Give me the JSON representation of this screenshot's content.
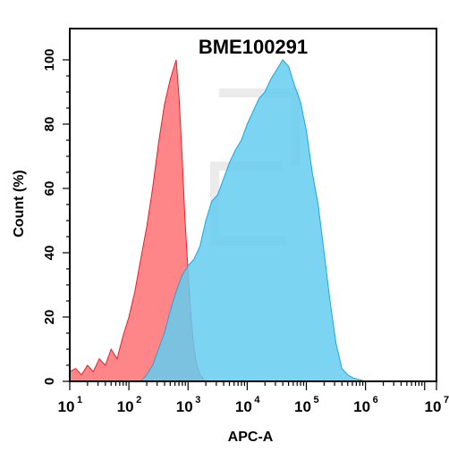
{
  "chart_data": {
    "type": "area",
    "title": "BME100291",
    "xlabel": "APC-A",
    "ylabel": "Count  (%)",
    "x_scale": "log10",
    "xlim": [
      10,
      15848932
    ],
    "ylim": [
      0,
      100
    ],
    "x_ticks": [
      {
        "base": "10",
        "exp": "1",
        "value": 10
      },
      {
        "base": "10",
        "exp": "2",
        "value": 100
      },
      {
        "base": "10",
        "exp": "3",
        "value": 1000
      },
      {
        "base": "10",
        "exp": "4",
        "value": 10000
      },
      {
        "base": "10",
        "exp": "5",
        "value": 100000
      },
      {
        "base": "10",
        "exp": "6",
        "value": 1000000
      },
      {
        "base": "10",
        "exp": "7.2",
        "value": 15848932
      }
    ],
    "y_ticks": [
      "0",
      "20",
      "40",
      "60",
      "80",
      "100"
    ],
    "y_tick_values": [
      0,
      20,
      40,
      60,
      80,
      100
    ],
    "series": [
      {
        "color": "#ff6b6e",
        "stroke": "#e8202a",
        "points": [
          [
            10,
            3
          ],
          [
            12.6,
            4
          ],
          [
            15.8,
            2
          ],
          [
            20,
            5
          ],
          [
            25,
            3
          ],
          [
            31.6,
            7
          ],
          [
            39.8,
            5
          ],
          [
            50,
            10
          ],
          [
            63,
            7
          ],
          [
            79,
            14
          ],
          [
            100,
            20
          ],
          [
            126,
            28
          ],
          [
            158,
            38
          ],
          [
            200,
            48
          ],
          [
            251,
            60
          ],
          [
            316,
            74
          ],
          [
            398,
            86
          ],
          [
            501,
            94
          ],
          [
            630,
            100
          ],
          [
            708,
            88
          ],
          [
            794,
            70
          ],
          [
            891,
            50
          ],
          [
            1000,
            34
          ],
          [
            1122,
            20
          ],
          [
            1259,
            10
          ],
          [
            1413,
            5
          ],
          [
            1585,
            2
          ],
          [
            1995,
            0
          ]
        ]
      },
      {
        "color": "#63cdf0",
        "stroke": "#1aa7da",
        "points": [
          [
            158,
            0
          ],
          [
            200,
            2
          ],
          [
            251,
            5
          ],
          [
            316,
            10
          ],
          [
            398,
            15
          ],
          [
            501,
            22
          ],
          [
            631,
            28
          ],
          [
            794,
            33
          ],
          [
            1000,
            36
          ],
          [
            1259,
            38
          ],
          [
            1585,
            42
          ],
          [
            1995,
            50
          ],
          [
            2512,
            56
          ],
          [
            3162,
            58
          ],
          [
            3981,
            63
          ],
          [
            5012,
            68
          ],
          [
            6310,
            72
          ],
          [
            7943,
            75
          ],
          [
            10000,
            80
          ],
          [
            12589,
            84
          ],
          [
            15849,
            88
          ],
          [
            19953,
            90
          ],
          [
            25119,
            94
          ],
          [
            31623,
            97
          ],
          [
            39811,
            100
          ],
          [
            50119,
            98
          ],
          [
            63096,
            92
          ],
          [
            79433,
            87
          ],
          [
            100000,
            78
          ],
          [
            125893,
            65
          ],
          [
            158489,
            55
          ],
          [
            199526,
            40
          ],
          [
            251189,
            25
          ],
          [
            316228,
            12
          ],
          [
            398107,
            4
          ],
          [
            501187,
            2
          ],
          [
            630957,
            1
          ],
          [
            1000000,
            0
          ]
        ]
      }
    ],
    "grid": false
  }
}
